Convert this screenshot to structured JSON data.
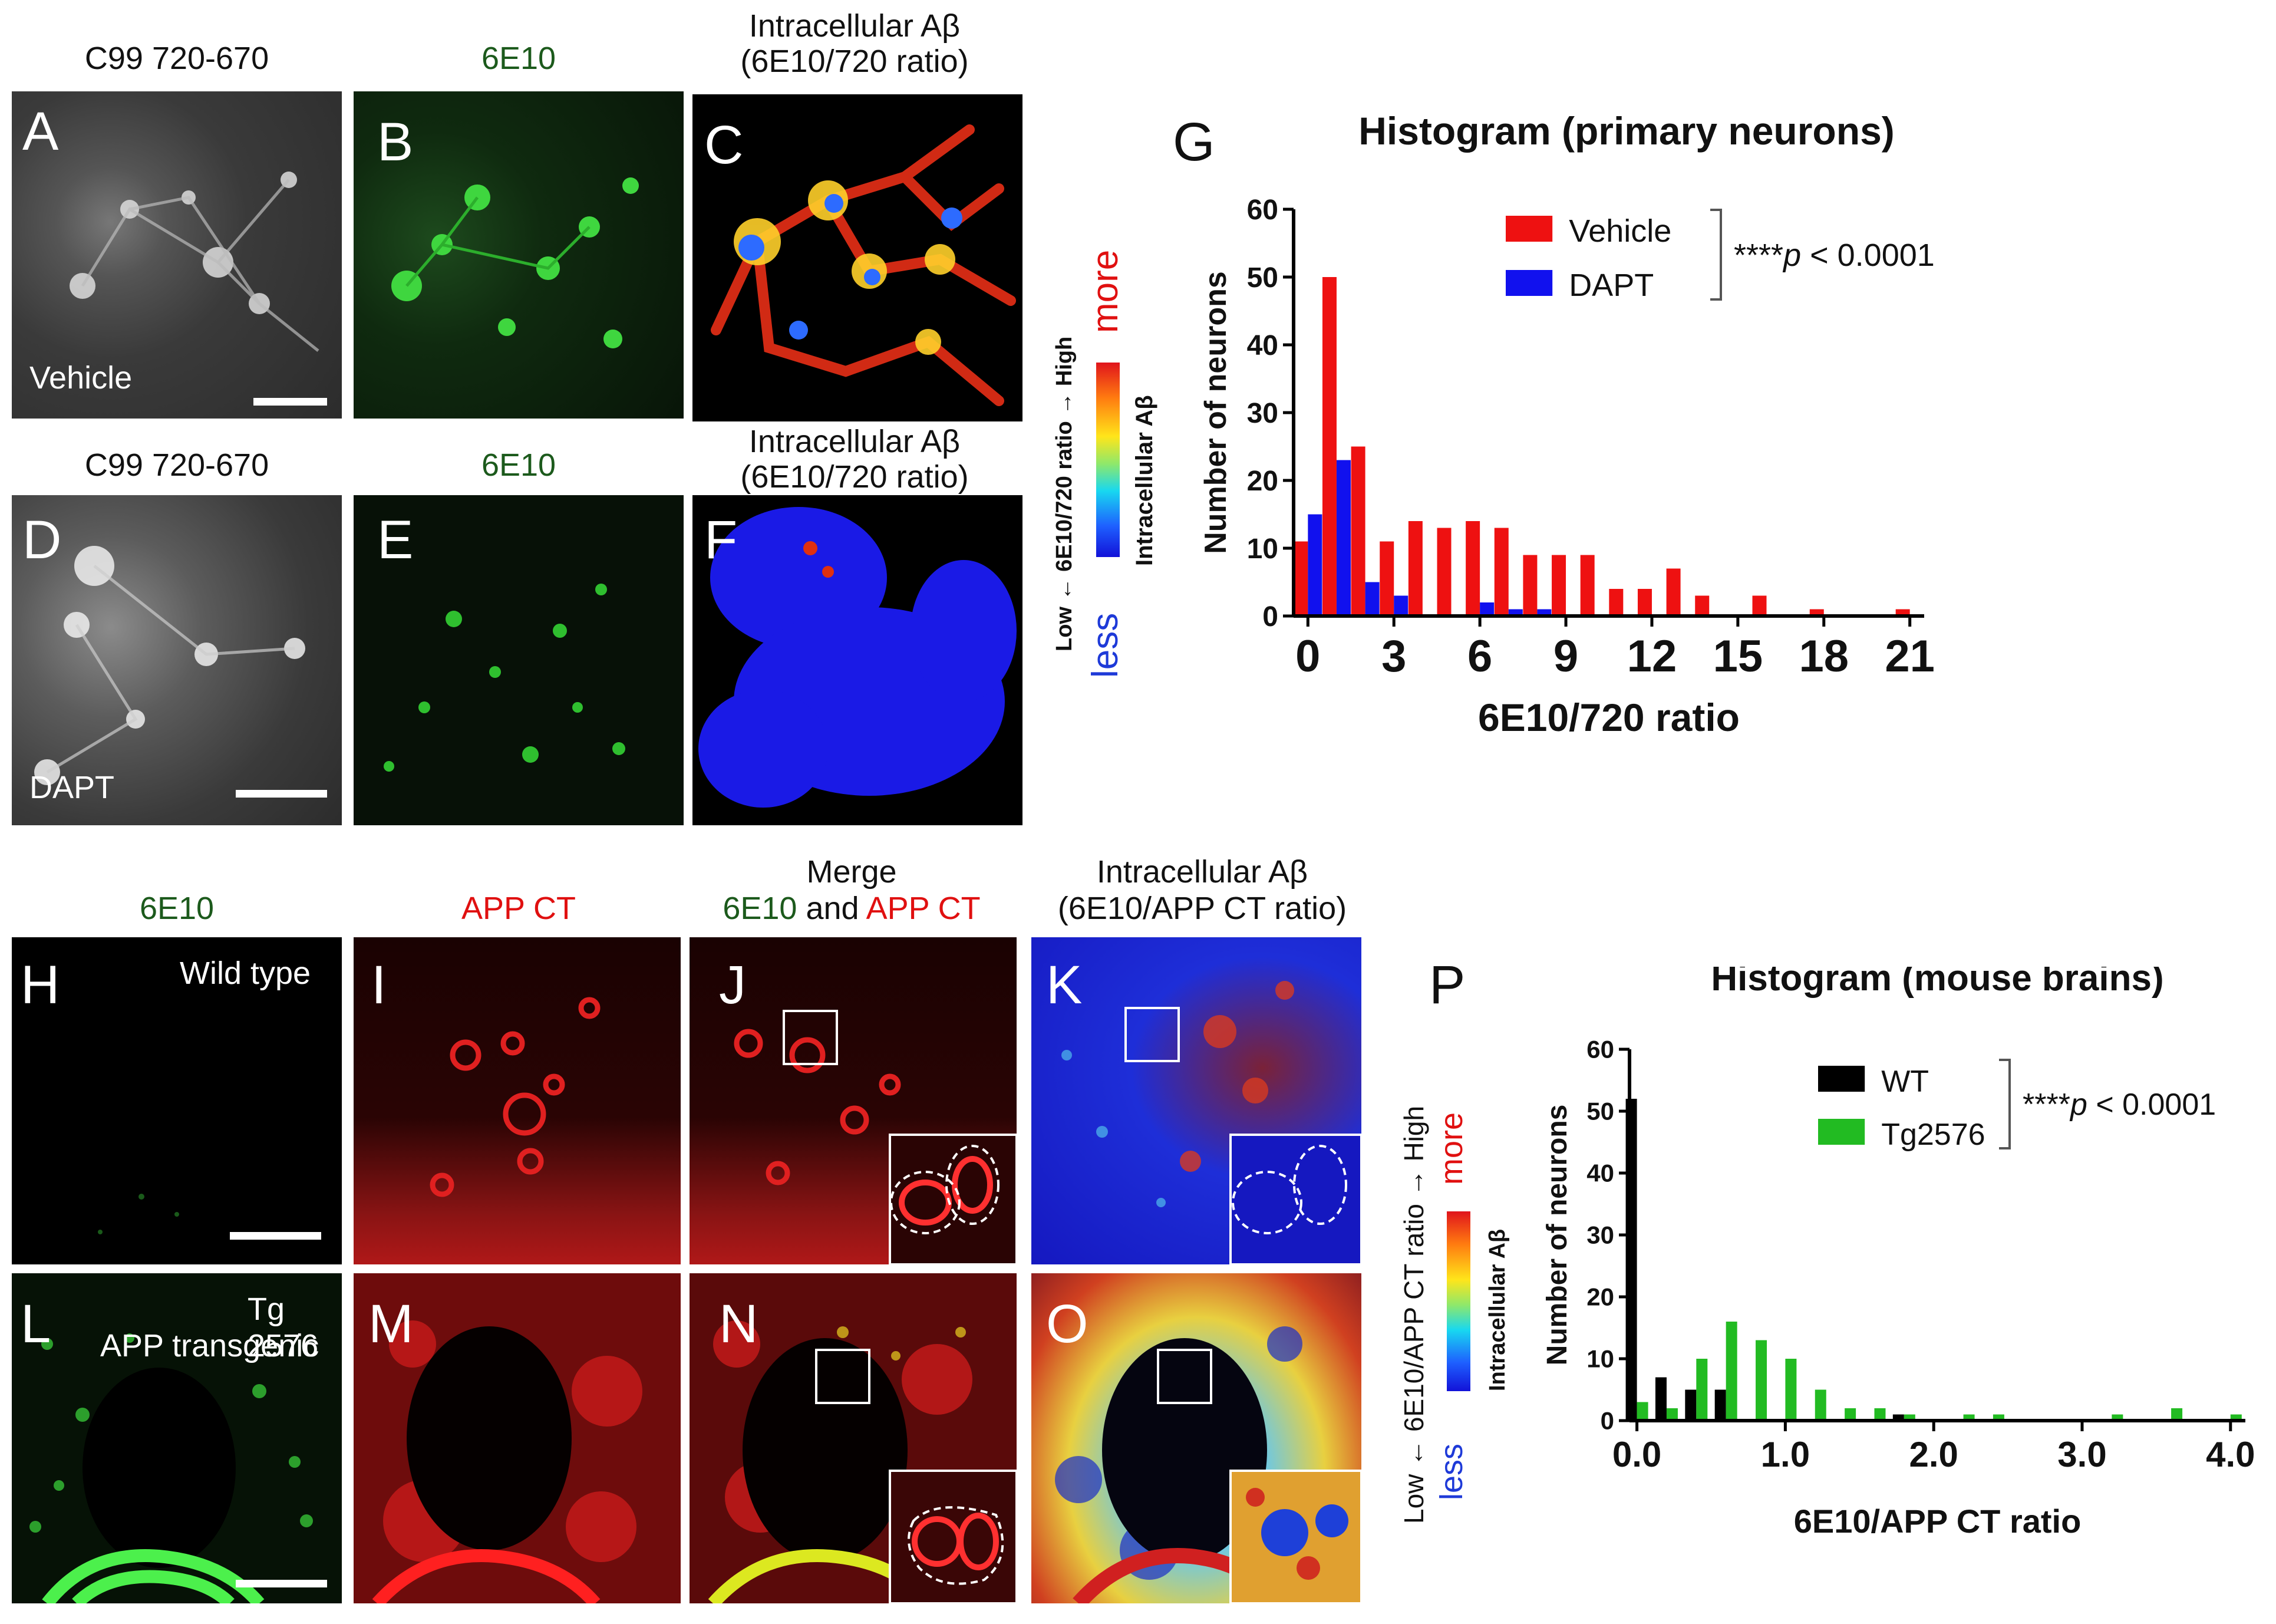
{
  "colors": {
    "red": "#ee1111",
    "blue": "#1111ee",
    "green": "#22bb22",
    "black": "#000000",
    "darkgreen": "#1c5a1c"
  },
  "top": {
    "titles": {
      "a_top": "C99 720-670",
      "b_top": "6E10",
      "c_top_line1": "Intracellular Aβ",
      "c_top_line2": "(6E10/720 ratio)",
      "d_top": "C99 720-670",
      "e_top": "6E10",
      "f_top_line1": "Intracellular Aβ",
      "f_top_line2": "(6E10/720 ratio)"
    },
    "panel_letters": {
      "a": "A",
      "b": "B",
      "c": "C",
      "d": "D",
      "e": "E",
      "f": "F"
    },
    "inset_labels": {
      "vehicle": "Vehicle",
      "dapt": "DAPT"
    },
    "colorbar": {
      "left": "Low ← 6E10/720 ratio → High",
      "right": "Intracellular Aβ",
      "more": "more",
      "less": "less"
    }
  },
  "bottom": {
    "titles": {
      "h_top": "6E10",
      "i_top": "APP CT",
      "j_top_line1": "Merge",
      "j_top_green": "6E10",
      "j_top_and": " and ",
      "j_top_red": "APP CT",
      "k_top_line1": "Intracellular Aβ",
      "k_top_line2": "(6E10/APP CT ratio)"
    },
    "panel_letters": {
      "h": "H",
      "i": "I",
      "j": "J",
      "k": "K",
      "l": "L",
      "m": "M",
      "n": "N",
      "o": "O"
    },
    "inset_labels": {
      "wild_type": "Wild type",
      "tg_line1": "Tg 2576",
      "tg_line2": "APP transgenic"
    },
    "colorbar": {
      "left": "Low ← 6E10/APP CT ratio → High",
      "right": "Intracellular Aβ",
      "more": "more",
      "less": "less"
    }
  },
  "chart_data": [
    {
      "panel": "G",
      "type": "bar",
      "title": "Histogram (primary neurons)",
      "xlabel": "6E10/720 ratio",
      "ylabel": "Number of neurons",
      "ylim": [
        0,
        60
      ],
      "xlim": [
        -0.5,
        21.5
      ],
      "yticks": [
        0,
        10,
        20,
        30,
        40,
        50,
        60
      ],
      "xticks": [
        0,
        3,
        6,
        9,
        12,
        15,
        18,
        21
      ],
      "annotation": "****p < 0.0001",
      "annotation_stars": "****",
      "annotation_p": "p",
      "annotation_rest": " < 0.0001",
      "legend_position": "top-right",
      "series": [
        {
          "name": "Vehicle",
          "color": "#ee1111",
          "x": [
            0,
            1,
            2,
            3,
            4,
            5,
            6,
            7,
            8,
            9,
            10,
            11,
            12,
            13,
            14,
            15,
            16,
            17,
            18,
            19,
            20,
            21
          ],
          "values": [
            11,
            50,
            25,
            11,
            14,
            13,
            14,
            13,
            9,
            9,
            9,
            4,
            4,
            7,
            3,
            0,
            3,
            0,
            1,
            0,
            0,
            1
          ]
        },
        {
          "name": "DAPT",
          "color": "#1111ee",
          "x": [
            0,
            1,
            2,
            3,
            4,
            5,
            6,
            7,
            8,
            9,
            10,
            11,
            12,
            13,
            14,
            15,
            16,
            17,
            18,
            19,
            20,
            21
          ],
          "values": [
            15,
            23,
            5,
            3,
            0,
            0,
            2,
            1,
            1,
            0,
            0,
            0,
            0,
            0,
            0,
            0,
            0,
            0,
            0,
            0,
            0,
            0
          ]
        }
      ]
    },
    {
      "panel": "P",
      "type": "bar",
      "title": "Histogram (mouse brains)",
      "xlabel": "6E10/APP CT ratio",
      "ylabel": "Number of neurons",
      "ylim": [
        0,
        60
      ],
      "xlim": [
        -0.05,
        4.1
      ],
      "yticks": [
        0,
        10,
        20,
        30,
        40,
        50,
        60
      ],
      "xticks": [
        0,
        1,
        2,
        3,
        4
      ],
      "xtick_labels": [
        "0.0",
        "1.0",
        "2.0",
        "3.0",
        "4.0"
      ],
      "annotation": "****p < 0.0001",
      "annotation_stars": "****",
      "annotation_p": "p",
      "annotation_rest": " < 0.0001",
      "legend_position": "top-right",
      "series": [
        {
          "name": "WT",
          "color": "#000000",
          "x": [
            0,
            0.2,
            0.4,
            0.6,
            0.8,
            1.0,
            1.2,
            1.4,
            1.6,
            1.8,
            2.0,
            2.2,
            2.4,
            2.6,
            2.8,
            3.0,
            3.2,
            3.4,
            3.6,
            3.8,
            4.0
          ],
          "values": [
            52,
            7,
            5,
            5,
            0,
            0,
            0,
            0,
            0,
            1,
            0,
            0,
            0,
            0,
            0,
            0,
            0,
            0,
            0,
            0,
            0
          ]
        },
        {
          "name": "Tg2576",
          "color": "#22bb22",
          "x": [
            0,
            0.2,
            0.4,
            0.6,
            0.8,
            1.0,
            1.2,
            1.4,
            1.6,
            1.8,
            2.0,
            2.2,
            2.4,
            2.6,
            2.8,
            3.0,
            3.2,
            3.4,
            3.6,
            3.8,
            4.0
          ],
          "values": [
            3,
            2,
            10,
            16,
            13,
            10,
            5,
            2,
            2,
            1,
            0,
            1,
            1,
            0,
            0,
            0,
            1,
            0,
            2,
            0,
            1
          ]
        }
      ]
    }
  ]
}
